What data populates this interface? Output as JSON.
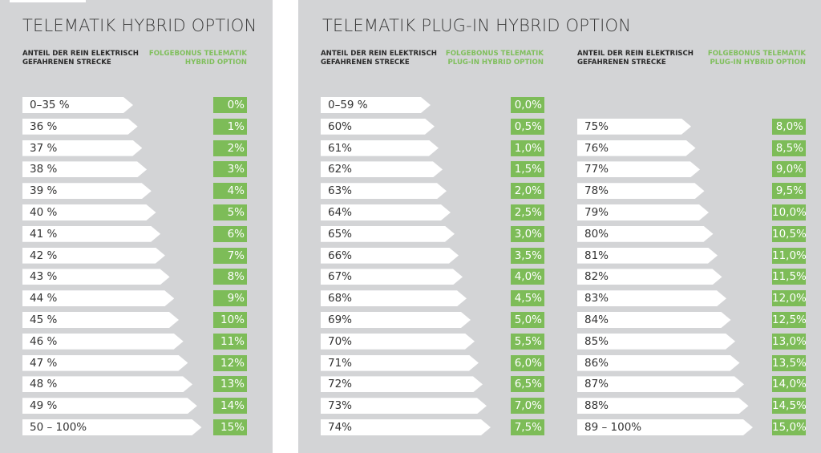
{
  "hybrid": {
    "title": "TELEMATIK HYBRID OPTION",
    "col1": "ANTEIL DER REIN ELEKTRISCH GEFAHRENEN STRECKE",
    "col2": "FOLGEBONUS TELEMATIK HYBRID OPTION",
    "rows": [
      [
        "0–35 %",
        "0%"
      ],
      [
        "36 %",
        "1%"
      ],
      [
        "37 %",
        "2%"
      ],
      [
        "38 %",
        "3%"
      ],
      [
        "39 %",
        "4%"
      ],
      [
        "40 %",
        "5%"
      ],
      [
        "41 %",
        "6%"
      ],
      [
        "42 %",
        "7%"
      ],
      [
        "43 %",
        "8%"
      ],
      [
        "44 %",
        "9%"
      ],
      [
        "45 %",
        "10%"
      ],
      [
        "46 %",
        "11%"
      ],
      [
        "47 %",
        "12%"
      ],
      [
        "48 %",
        "13%"
      ],
      [
        "49 %",
        "14%"
      ],
      [
        "50 – 100%",
        "15%"
      ]
    ]
  },
  "plugin": {
    "title": "TELEMATIK PLUG-IN HYBRID OPTION",
    "col1": "ANTEIL DER REIN ELEKTRISCH GEFAHRENEN STRECKE",
    "col2": "FOLGEBONUS TELEMATIK PLUG-IN HYBRID OPTION",
    "rows_a": [
      [
        "0–59 %",
        "0,0%"
      ],
      [
        "60%",
        "0,5%"
      ],
      [
        "61%",
        "1,0%"
      ],
      [
        "62%",
        "1,5%"
      ],
      [
        "63%",
        "2,0%"
      ],
      [
        "64%",
        "2,5%"
      ],
      [
        "65%",
        "3,0%"
      ],
      [
        "66%",
        "3,5%"
      ],
      [
        "67%",
        "4,0%"
      ],
      [
        "68%",
        "4,5%"
      ],
      [
        "69%",
        "5,0%"
      ],
      [
        "70%",
        "5,5%"
      ],
      [
        "71%",
        "6,0%"
      ],
      [
        "72%",
        "6,5%"
      ],
      [
        "73%",
        "7,0%"
      ],
      [
        "74%",
        "7,5%"
      ]
    ],
    "rows_b": [
      [
        "75%",
        "8,0%"
      ],
      [
        "76%",
        "8,5%"
      ],
      [
        "77%",
        "9,0%"
      ],
      [
        "78%",
        "9,5%"
      ],
      [
        "79%",
        "10,0%"
      ],
      [
        "80%",
        "10,5%"
      ],
      [
        "81%",
        "11,0%"
      ],
      [
        "82%",
        "11,5%"
      ],
      [
        "83%",
        "12,0%"
      ],
      [
        "84%",
        "12,5%"
      ],
      [
        "85%",
        "13,0%"
      ],
      [
        "86%",
        "13,5%"
      ],
      [
        "87%",
        "14,0%"
      ],
      [
        "88%",
        "14,5%"
      ],
      [
        "89 – 100%",
        "15,0%"
      ]
    ]
  }
}
